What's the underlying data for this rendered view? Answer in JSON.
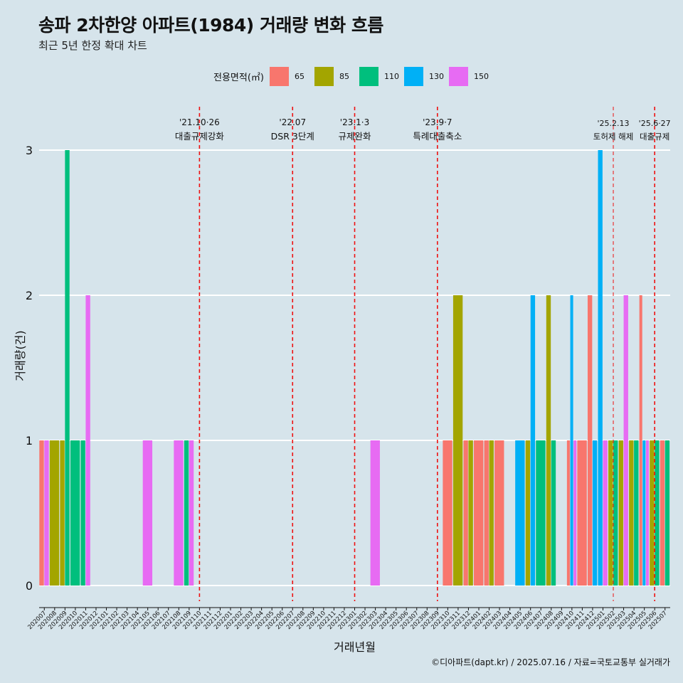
{
  "header": {
    "title": "송파 2차한양 아파트(1984) 거래량 변화 흐름",
    "subtitle": "최근 5년 한정 확대 차트"
  },
  "legend": {
    "title": "전용면적(㎡)",
    "items": [
      {
        "label": "65",
        "color": "#f8766d"
      },
      {
        "label": "85",
        "color": "#a3a500"
      },
      {
        "label": "110",
        "color": "#00bf7d"
      },
      {
        "label": "130",
        "color": "#00b0f6"
      },
      {
        "label": "150",
        "color": "#e76bf3"
      }
    ]
  },
  "caption": "©디아파트(dapt.kr) / 2025.07.16 / 자료=국토교통부 실거래가",
  "chart_data": {
    "type": "bar",
    "xlabel": "거래년월",
    "ylabel": "거래량(건)",
    "ylim": [
      0,
      3
    ],
    "yticks": [
      0,
      1,
      2,
      3
    ],
    "categories": [
      "202007",
      "202008",
      "202009",
      "202010",
      "202011",
      "202012",
      "202101",
      "202102",
      "202103",
      "202104",
      "202105",
      "202106",
      "202107",
      "202108",
      "202109",
      "202110",
      "202111",
      "202112",
      "202201",
      "202202",
      "202203",
      "202204",
      "202205",
      "202206",
      "202207",
      "202208",
      "202209",
      "202210",
      "202211",
      "202212",
      "202301",
      "202302",
      "202303",
      "202304",
      "202305",
      "202306",
      "202307",
      "202308",
      "202309",
      "202310",
      "202311",
      "202312",
      "202401",
      "202402",
      "202403",
      "202404",
      "202405",
      "202406",
      "202407",
      "202408",
      "202409",
      "202410",
      "202411",
      "202412",
      "202501",
      "202502",
      "202503",
      "202504",
      "202505",
      "202506",
      "202507"
    ],
    "series": [
      {
        "name": "65",
        "values": [
          1,
          0,
          0,
          0,
          0,
          0,
          0,
          0,
          0,
          0,
          0,
          0,
          0,
          0,
          0,
          0,
          0,
          0,
          0,
          0,
          0,
          0,
          0,
          0,
          0,
          0,
          0,
          0,
          0,
          0,
          0,
          0,
          0,
          0,
          0,
          0,
          0,
          0,
          0,
          1,
          0,
          1,
          1,
          1,
          1,
          0,
          0,
          0,
          0,
          0,
          0,
          1,
          1,
          2,
          0,
          0,
          0,
          0,
          2,
          0,
          1
        ]
      },
      {
        "name": "85",
        "values": [
          0,
          1,
          1,
          0,
          0,
          0,
          0,
          0,
          0,
          0,
          0,
          0,
          0,
          0,
          0,
          0,
          0,
          0,
          0,
          0,
          0,
          0,
          0,
          0,
          0,
          0,
          0,
          0,
          0,
          0,
          0,
          0,
          0,
          0,
          0,
          0,
          0,
          0,
          0,
          0,
          2,
          1,
          0,
          1,
          0,
          0,
          0,
          1,
          0,
          2,
          0,
          0,
          0,
          0,
          0,
          1,
          1,
          1,
          0,
          1,
          0
        ]
      },
      {
        "name": "110",
        "values": [
          0,
          0,
          3,
          1,
          1,
          0,
          0,
          0,
          0,
          0,
          0,
          0,
          0,
          0,
          1,
          0,
          0,
          0,
          0,
          0,
          0,
          0,
          0,
          0,
          0,
          0,
          0,
          0,
          0,
          0,
          0,
          0,
          0,
          0,
          0,
          0,
          0,
          0,
          0,
          0,
          0,
          0,
          0,
          0,
          0,
          0,
          0,
          0,
          1,
          1,
          0,
          0,
          0,
          0,
          0,
          1,
          0,
          1,
          0,
          1,
          1
        ]
      },
      {
        "name": "130",
        "values": [
          0,
          0,
          0,
          0,
          0,
          0,
          0,
          0,
          0,
          0,
          0,
          0,
          0,
          0,
          0,
          0,
          0,
          0,
          0,
          0,
          0,
          0,
          0,
          0,
          0,
          0,
          0,
          0,
          0,
          0,
          0,
          0,
          0,
          0,
          0,
          0,
          0,
          0,
          0,
          0,
          0,
          0,
          0,
          0,
          0,
          0,
          1,
          2,
          0,
          0,
          0,
          2,
          0,
          1,
          3,
          0,
          0,
          0,
          1,
          0,
          0
        ]
      },
      {
        "name": "150",
        "values": [
          1,
          0,
          0,
          0,
          2,
          0,
          0,
          0,
          0,
          0,
          1,
          0,
          0,
          1,
          1,
          0,
          0,
          0,
          0,
          0,
          0,
          0,
          0,
          0,
          0,
          0,
          0,
          0,
          0,
          0,
          0,
          0,
          1,
          0,
          0,
          0,
          0,
          0,
          0,
          0,
          0,
          0,
          0,
          0,
          0,
          0,
          0,
          0,
          0,
          0,
          0,
          1,
          0,
          0,
          1,
          0,
          2,
          0,
          1,
          0,
          0
        ]
      }
    ],
    "annotations": [
      {
        "month": "202110",
        "date": "'21.10·26",
        "label": "대출규제강화"
      },
      {
        "month": "202207",
        "date": "'22.07",
        "label": "DSR 3단계"
      },
      {
        "month": "202301",
        "date": "'23.1·3",
        "label": "규제완화"
      },
      {
        "month": "202309",
        "date": "'23.9·7",
        "label": "특례대출축소"
      },
      {
        "month": "202502",
        "date": "'25.2.13",
        "label": "토허제 해제"
      },
      {
        "month": "202506",
        "date": "'25.6·27",
        "label": "대출규제"
      }
    ]
  }
}
